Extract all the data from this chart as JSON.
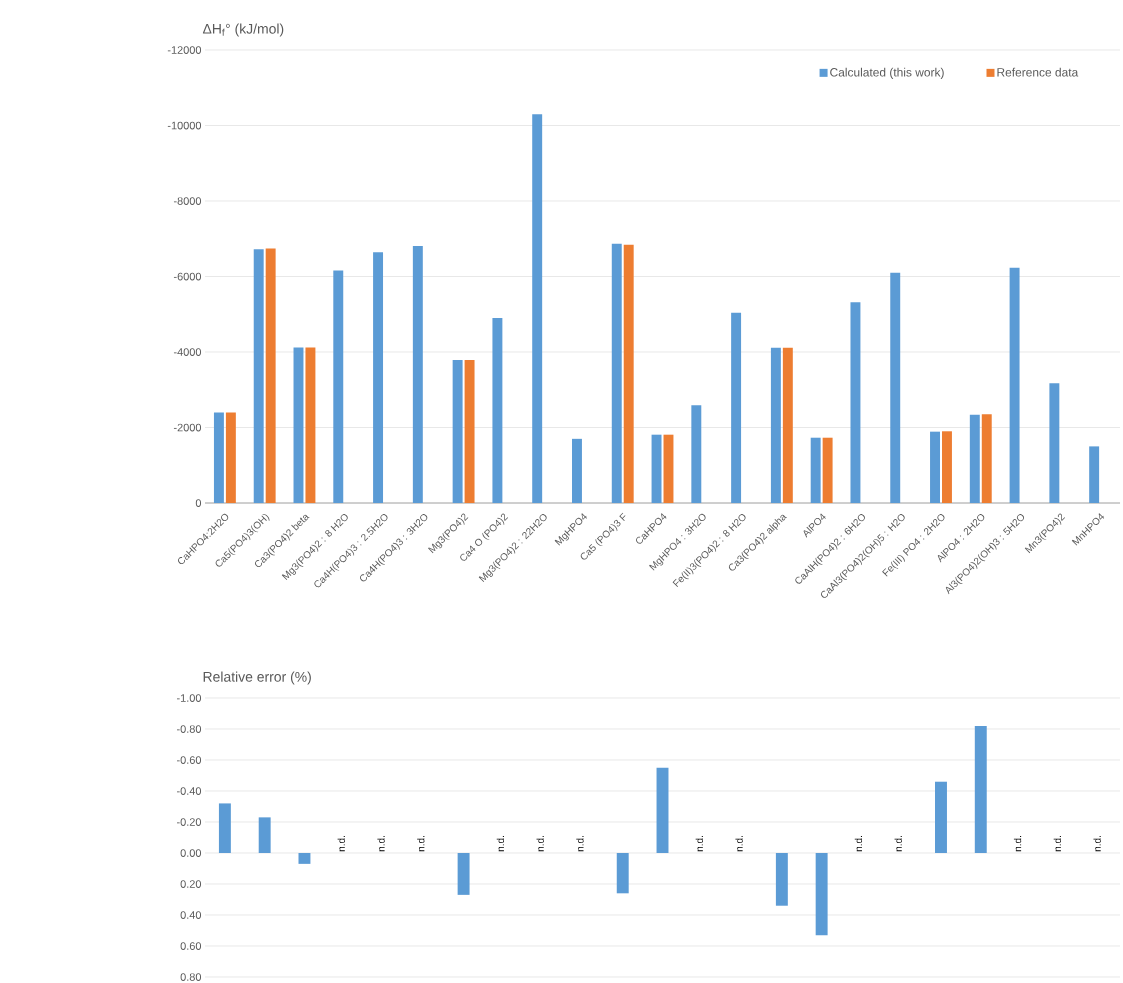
{
  "chart_data": [
    {
      "type": "bar",
      "title": null,
      "ylabel": "ΔH$_{f}$° (kJ/mol)",
      "categories": [
        "CaHPO4:2H2O",
        "Ca5(PO4)3(OH)",
        "Ca3(PO4)2 beta",
        "Mg3(PO4)2 : 8 H2O",
        "Ca4H(PO4)3 : 2.5H2O",
        "Ca4H(PO4)3 : 3H2O",
        "Mg3(PO4)2",
        "Ca4 O (PO4)2",
        "Mg3(PO4)2 : 22H2O",
        "MgHPO4",
        "Ca5 (PO4)3 F",
        "CaHPO4",
        "MgHPO4 : 3H2O",
        "Fe(II)3(PO4)2 : 8 H2O",
        "Ca3(PO4)2 alpha",
        "AlPO4",
        "CaAlH(PO4)2 : 6H2O",
        "CaAl3(PO4)2(OH)5 : H2O",
        "Fe(III) PO4 : 2H2O",
        "AlPO4 : 2H2O",
        "Al3(PO4)2(OH)3 : 5H2O",
        "Mn3(PO4)2",
        "MnHPO4"
      ],
      "series": [
        {
          "name": "Calculated (this work)",
          "color": "#5b9bd5",
          "values": [
            -2400,
            -6720,
            -4120,
            -6160,
            -6640,
            -6810,
            -3790,
            -4900,
            -10300,
            -1700,
            -6870,
            -1810,
            -2590,
            -5040,
            -4110,
            -1730,
            -5320,
            -6100,
            -1890,
            -2340,
            -6230,
            -3170,
            -1500
          ]
        },
        {
          "name": "Reference data",
          "color": "#ed7d31",
          "values": [
            -2400,
            -6740,
            -4120,
            null,
            null,
            null,
            -3790,
            null,
            null,
            null,
            -6840,
            -1810,
            null,
            null,
            -4110,
            -1730,
            null,
            null,
            -1900,
            -2350,
            null,
            null,
            null
          ]
        }
      ],
      "ylim": [
        0,
        -12000
      ],
      "yticks": [
        0,
        -2000,
        -4000,
        -6000,
        -8000,
        -10000,
        -12000
      ],
      "grid": "y",
      "legend": "top right"
    },
    {
      "type": "bar",
      "ylabel": "Relative error (%)",
      "categories": [
        null,
        null,
        null,
        null,
        null,
        null,
        null,
        null,
        null,
        null,
        null,
        null,
        null,
        null,
        null,
        null,
        null,
        null,
        null,
        null,
        null,
        null,
        null
      ],
      "values": [
        -0.32,
        -0.23,
        0.07,
        null,
        null,
        null,
        0.27,
        null,
        null,
        null,
        0.26,
        -0.55,
        null,
        null,
        0.34,
        0.53,
        null,
        null,
        -0.46,
        -0.82,
        null,
        null,
        null
      ],
      "value_labels": [
        null,
        null,
        null,
        "n.d.",
        "n.d.",
        "n.d.",
        null,
        "n.d.",
        "n.d.",
        "n.d.",
        null,
        null,
        "n.d.",
        "n.d.",
        null,
        null,
        "n.d.",
        "n.d.",
        null,
        null,
        "n.d.",
        "n.d.",
        "n.d."
      ],
      "color": "#5b9bd5",
      "ylim": [
        0.8,
        -1.0
      ],
      "yticks": [
        {
          "value": 0.8,
          "label": "0.80"
        },
        {
          "value": 0.6,
          "label": "0.60"
        },
        {
          "value": 0.4,
          "label": "0.40"
        },
        {
          "value": 0.2,
          "label": "0.20"
        },
        {
          "value": 0,
          "label": "0.00"
        },
        {
          "value": -0.2,
          "label": "-0.20"
        },
        {
          "value": -0.4,
          "label": "-0.40"
        },
        {
          "value": -0.6,
          "label": "-0.60"
        },
        {
          "value": -0.8,
          "label": "-0.80"
        },
        {
          "value": -1.0,
          "label": "-1.00"
        }
      ],
      "grid": "y",
      "tick_labels": "y"
    }
  ]
}
